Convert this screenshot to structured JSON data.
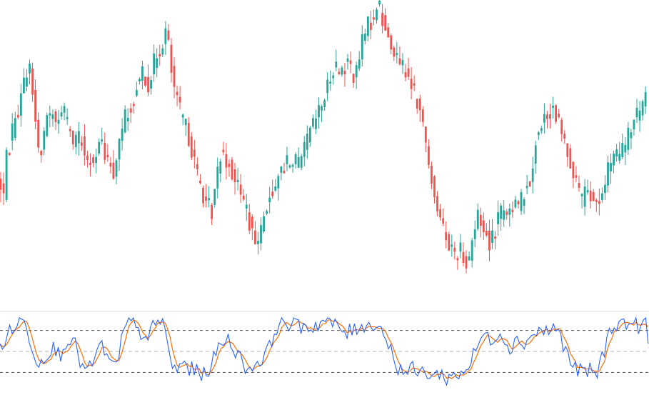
{
  "colors": {
    "up": "#26a69a",
    "down": "#ef5350",
    "k_line": "#2962ff",
    "d_line": "#ff6d00",
    "divider": "#e6e6e6",
    "level_line": "#555555",
    "mid_line": "#b0b0b0"
  },
  "chart_data": [
    {
      "type": "candlestick",
      "title": "",
      "grid": false,
      "legend": "none",
      "ylim": [
        0,
        100
      ],
      "path": [
        [
          0,
          38
        ],
        [
          4,
          30
        ],
        [
          10,
          48
        ],
        [
          20,
          58
        ],
        [
          30,
          68
        ],
        [
          40,
          80
        ],
        [
          47,
          68
        ],
        [
          55,
          44
        ],
        [
          63,
          58
        ],
        [
          72,
          62
        ],
        [
          80,
          60
        ],
        [
          88,
          64
        ],
        [
          97,
          55
        ],
        [
          105,
          50
        ],
        [
          113,
          54
        ],
        [
          122,
          42
        ],
        [
          130,
          46
        ],
        [
          140,
          52
        ],
        [
          150,
          46
        ],
        [
          160,
          38
        ],
        [
          168,
          54
        ],
        [
          177,
          62
        ],
        [
          188,
          68
        ],
        [
          198,
          78
        ],
        [
          208,
          72
        ],
        [
          218,
          82
        ],
        [
          226,
          86
        ],
        [
          233,
          92
        ],
        [
          240,
          76
        ],
        [
          247,
          66
        ],
        [
          256,
          60
        ],
        [
          266,
          52
        ],
        [
          276,
          40
        ],
        [
          286,
          32
        ],
        [
          296,
          26
        ],
        [
          302,
          36
        ],
        [
          310,
          50
        ],
        [
          320,
          44
        ],
        [
          330,
          38
        ],
        [
          340,
          30
        ],
        [
          350,
          22
        ],
        [
          360,
          16
        ],
        [
          368,
          24
        ],
        [
          378,
          32
        ],
        [
          390,
          40
        ],
        [
          400,
          44
        ],
        [
          410,
          46
        ],
        [
          420,
          42
        ],
        [
          430,
          52
        ],
        [
          440,
          58
        ],
        [
          450,
          64
        ],
        [
          460,
          72
        ],
        [
          468,
          80
        ],
        [
          478,
          76
        ],
        [
          488,
          80
        ],
        [
          498,
          74
        ],
        [
          506,
          86
        ],
        [
          514,
          92
        ],
        [
          522,
          96
        ],
        [
          530,
          100
        ],
        [
          538,
          94
        ],
        [
          546,
          86
        ],
        [
          554,
          82
        ],
        [
          562,
          80
        ],
        [
          572,
          74
        ],
        [
          582,
          68
        ],
        [
          590,
          60
        ],
        [
          598,
          48
        ],
        [
          606,
          38
        ],
        [
          614,
          26
        ],
        [
          622,
          18
        ],
        [
          630,
          16
        ],
        [
          638,
          12
        ],
        [
          646,
          14
        ],
        [
          654,
          8
        ],
        [
          662,
          18
        ],
        [
          670,
          26
        ],
        [
          678,
          20
        ],
        [
          686,
          16
        ],
        [
          694,
          22
        ],
        [
          702,
          26
        ],
        [
          710,
          24
        ],
        [
          718,
          30
        ],
        [
          726,
          28
        ],
        [
          734,
          34
        ],
        [
          742,
          38
        ],
        [
          750,
          52
        ],
        [
          758,
          56
        ],
        [
          766,
          62
        ],
        [
          774,
          64
        ],
        [
          782,
          58
        ],
        [
          790,
          52
        ],
        [
          798,
          46
        ],
        [
          806,
          38
        ],
        [
          814,
          30
        ],
        [
          822,
          34
        ],
        [
          830,
          32
        ],
        [
          838,
          28
        ],
        [
          846,
          36
        ],
        [
          854,
          44
        ],
        [
          862,
          46
        ],
        [
          870,
          48
        ],
        [
          878,
          52
        ],
        [
          886,
          58
        ],
        [
          894,
          62
        ],
        [
          902,
          66
        ],
        [
          909,
          68
        ]
      ]
    },
    {
      "type": "line",
      "title": "",
      "grid": false,
      "legend": "none",
      "ylim": [
        0,
        100
      ],
      "levels": [
        80,
        50,
        20
      ],
      "series": [
        {
          "role": "%K",
          "values": []
        },
        {
          "role": "%D",
          "values": []
        }
      ],
      "k_path": [
        [
          0,
          55
        ],
        [
          8,
          70
        ],
        [
          18,
          82
        ],
        [
          28,
          95
        ],
        [
          36,
          88
        ],
        [
          46,
          55
        ],
        [
          54,
          30
        ],
        [
          64,
          48
        ],
        [
          74,
          55
        ],
        [
          84,
          45
        ],
        [
          94,
          70
        ],
        [
          104,
          62
        ],
        [
          114,
          30
        ],
        [
          124,
          20
        ],
        [
          134,
          45
        ],
        [
          144,
          60
        ],
        [
          154,
          30
        ],
        [
          164,
          28
        ],
        [
          172,
          75
        ],
        [
          180,
          92
        ],
        [
          190,
          95
        ],
        [
          198,
          75
        ],
        [
          206,
          55
        ],
        [
          214,
          90
        ],
        [
          222,
          95
        ],
        [
          230,
          88
        ],
        [
          238,
          40
        ],
        [
          246,
          20
        ],
        [
          256,
          35
        ],
        [
          266,
          25
        ],
        [
          276,
          20
        ],
        [
          286,
          18
        ],
        [
          296,
          30
        ],
        [
          306,
          55
        ],
        [
          316,
          70
        ],
        [
          326,
          60
        ],
        [
          336,
          40
        ],
        [
          346,
          25
        ],
        [
          356,
          30
        ],
        [
          366,
          40
        ],
        [
          376,
          50
        ],
        [
          386,
          85
        ],
        [
          396,
          92
        ],
        [
          406,
          90
        ],
        [
          416,
          85
        ],
        [
          426,
          88
        ],
        [
          436,
          84
        ],
        [
          446,
          90
        ],
        [
          456,
          95
        ],
        [
          466,
          88
        ],
        [
          476,
          82
        ],
        [
          486,
          76
        ],
        [
          496,
          80
        ],
        [
          506,
          90
        ],
        [
          516,
          85
        ],
        [
          526,
          92
        ],
        [
          536,
          80
        ],
        [
          546,
          55
        ],
        [
          556,
          30
        ],
        [
          566,
          20
        ],
        [
          576,
          25
        ],
        [
          586,
          18
        ],
        [
          596,
          22
        ],
        [
          606,
          15
        ],
        [
          616,
          18
        ],
        [
          626,
          12
        ],
        [
          636,
          15
        ],
        [
          646,
          20
        ],
        [
          656,
          28
        ],
        [
          666,
          50
        ],
        [
          676,
          75
        ],
        [
          686,
          65
        ],
        [
          696,
          78
        ],
        [
          706,
          70
        ],
        [
          716,
          55
        ],
        [
          726,
          68
        ],
        [
          736,
          62
        ],
        [
          746,
          75
        ],
        [
          756,
          80
        ],
        [
          766,
          78
        ],
        [
          776,
          85
        ],
        [
          786,
          70
        ],
        [
          796,
          40
        ],
        [
          806,
          25
        ],
        [
          816,
          20
        ],
        [
          826,
          22
        ],
        [
          836,
          18
        ],
        [
          846,
          50
        ],
        [
          856,
          85
        ],
        [
          866,
          92
        ],
        [
          876,
          88
        ],
        [
          886,
          92
        ],
        [
          896,
          86
        ],
        [
          904,
          90
        ],
        [
          909,
          60
        ]
      ]
    }
  ]
}
